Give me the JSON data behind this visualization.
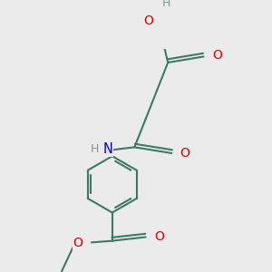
{
  "bg_color": "#ebebeb",
  "bond_color": "#3d7a62",
  "bond_width": 1.5,
  "atom_colors": {
    "O": "#dd0000",
    "N": "#0000cc",
    "H": "#7a9999"
  },
  "font_size": 9.5,
  "figsize": [
    3.0,
    3.0
  ],
  "dpi": 100,
  "xlim": [
    0,
    300
  ],
  "ylim": [
    0,
    300
  ]
}
